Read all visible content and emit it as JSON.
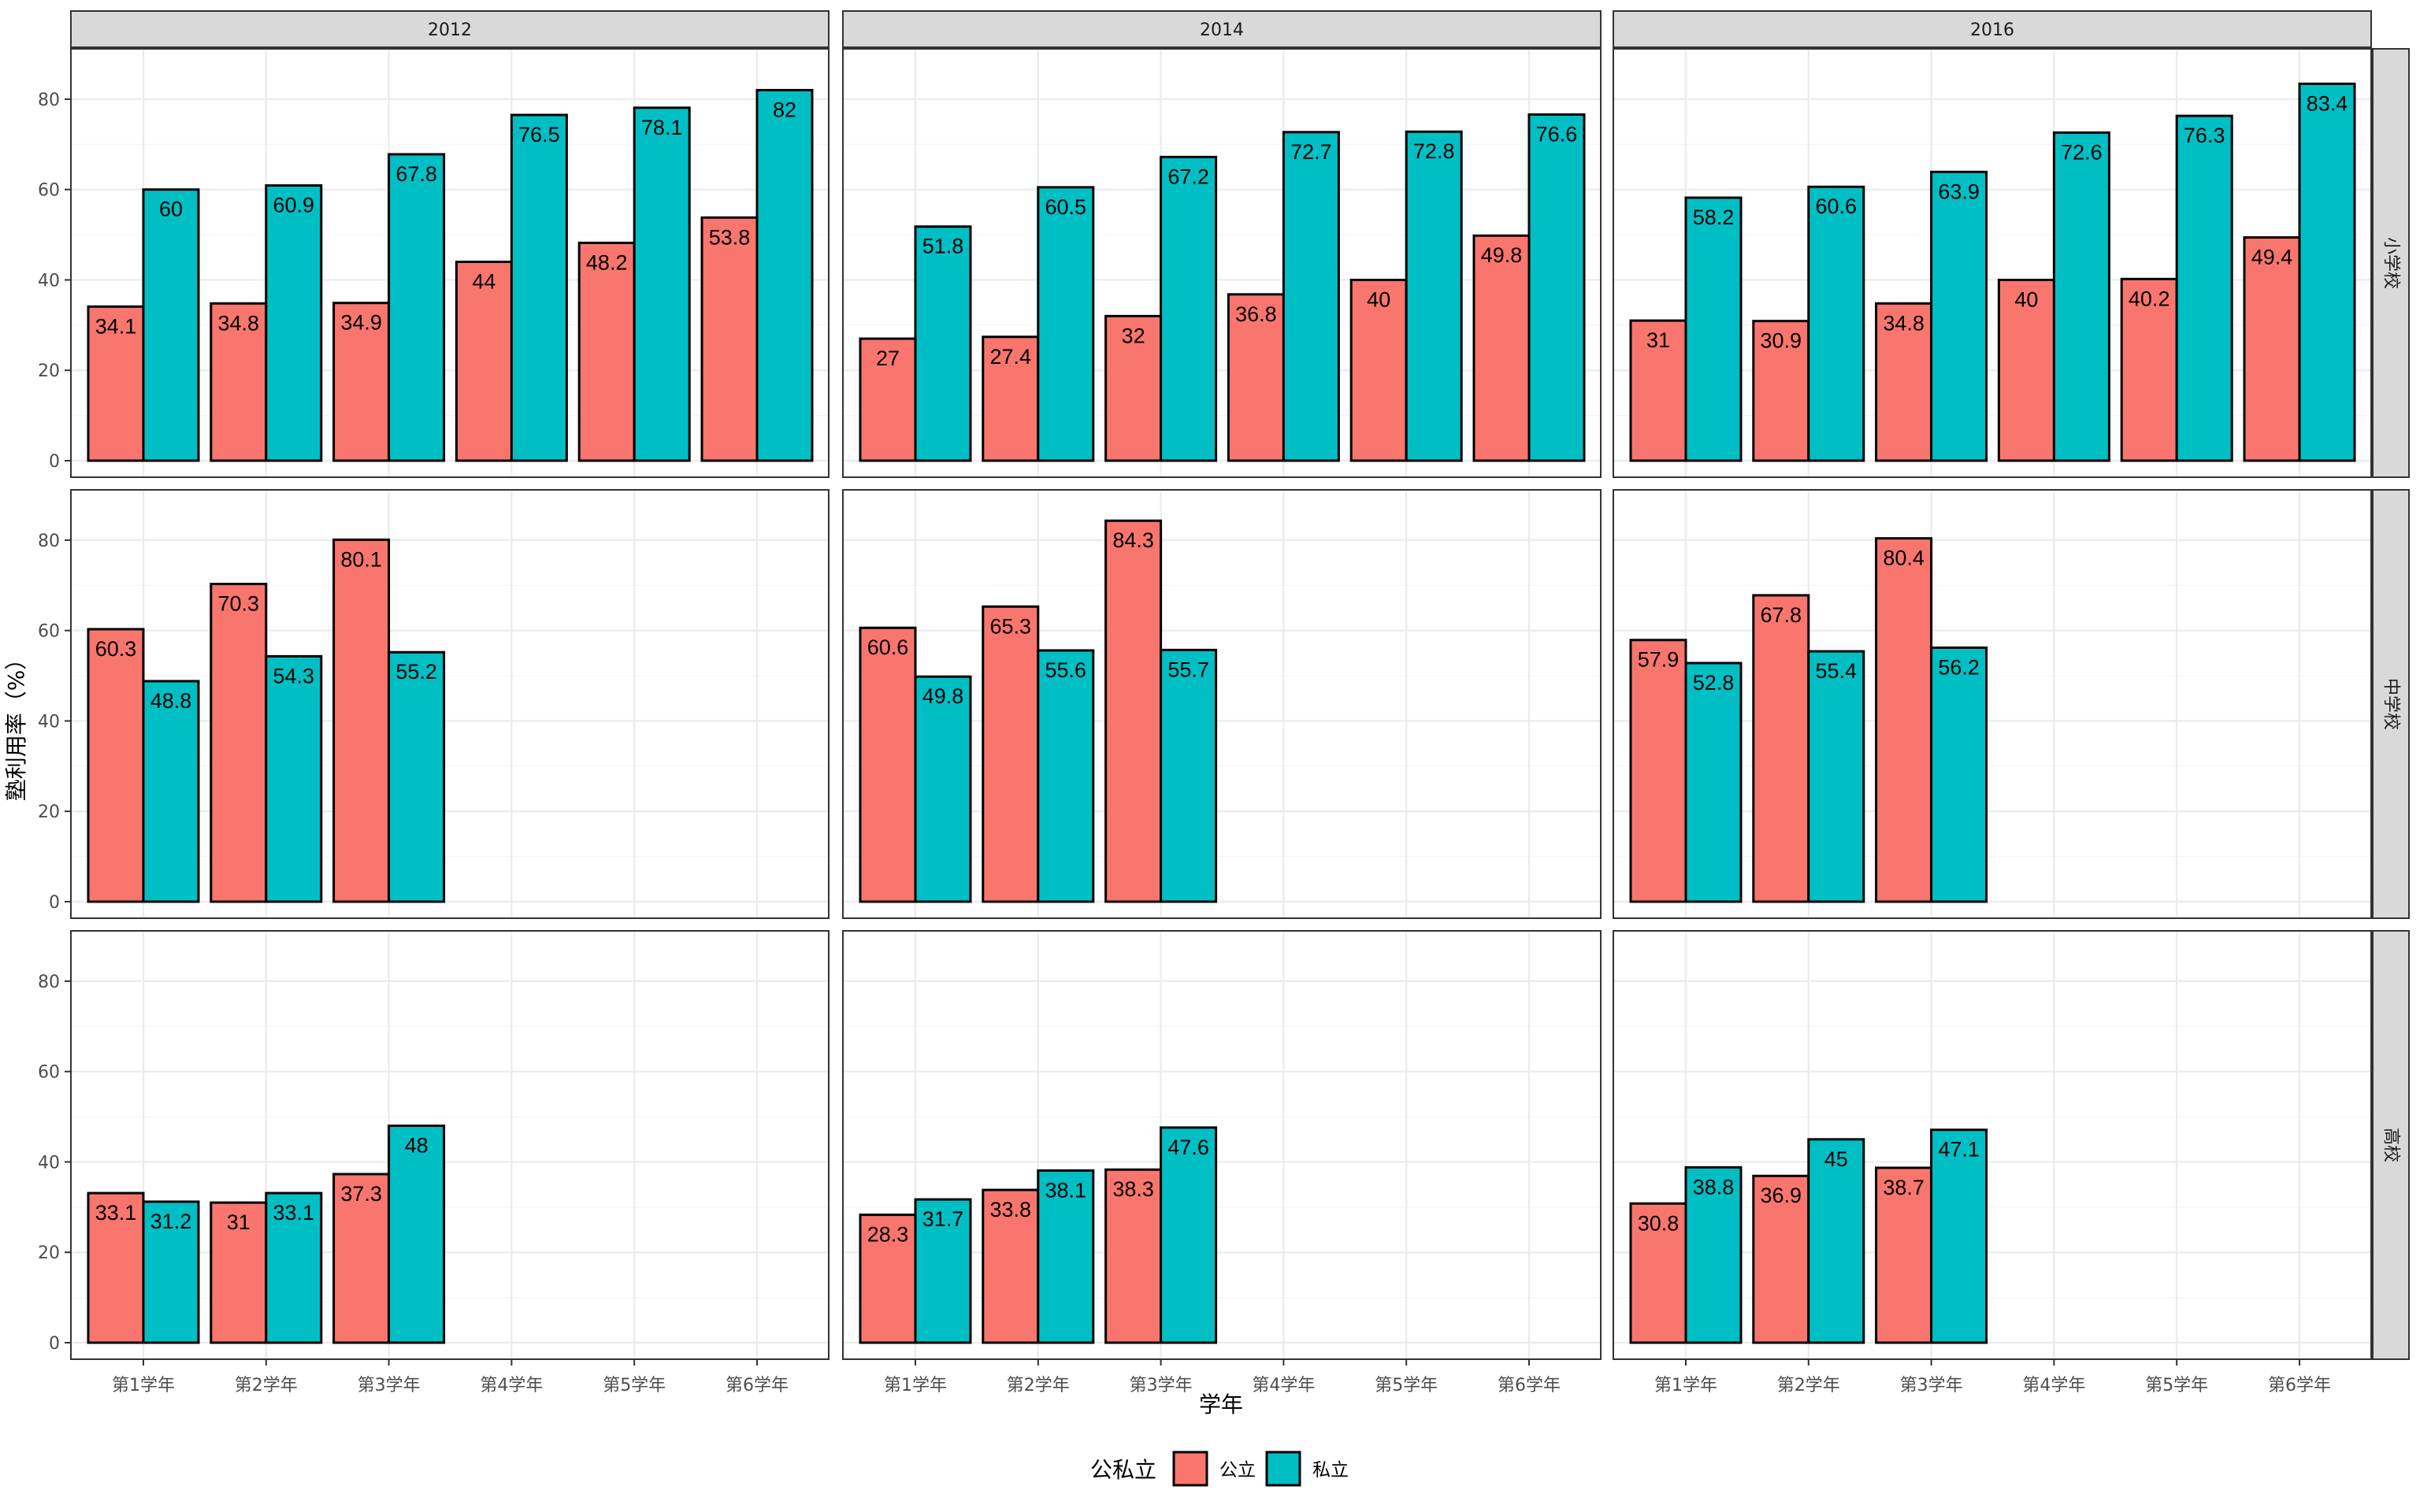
{
  "chart_data": {
    "type": "bar",
    "xlabel": "学年",
    "ylabel": "塾利用率（%）",
    "ylim": [
      0,
      88
    ],
    "yticks": [
      0,
      20,
      40,
      60,
      80
    ],
    "grid": true,
    "col_facets": [
      "2012",
      "2014",
      "2016"
    ],
    "row_facets": [
      "小学校",
      "中学校",
      "高校"
    ],
    "categories": [
      "第1学年",
      "第2学年",
      "第3学年",
      "第4学年",
      "第5学年",
      "第6学年"
    ],
    "legend": {
      "title": "公私立",
      "position": "bottom",
      "items": [
        {
          "name": "公立",
          "color": "#F8766D"
        },
        {
          "name": "私立",
          "color": "#00BFC4"
        }
      ]
    },
    "panels": [
      {
        "row": "小学校",
        "col": "2012",
        "公立": [
          34.1,
          34.8,
          34.9,
          44,
          48.2,
          53.8
        ],
        "私立": [
          60,
          60.9,
          67.8,
          76.5,
          78.1,
          82
        ]
      },
      {
        "row": "小学校",
        "col": "2014",
        "公立": [
          27,
          27.4,
          32,
          36.8,
          40,
          49.8
        ],
        "私立": [
          51.8,
          60.5,
          67.2,
          72.7,
          72.8,
          76.6
        ]
      },
      {
        "row": "小学校",
        "col": "2016",
        "公立": [
          31,
          30.9,
          34.8,
          40,
          40.2,
          49.4
        ],
        "私立": [
          58.2,
          60.6,
          63.9,
          72.6,
          76.3,
          83.4
        ]
      },
      {
        "row": "中学校",
        "col": "2012",
        "公立": [
          60.3,
          70.3,
          80.1
        ],
        "私立": [
          48.8,
          54.3,
          55.2
        ]
      },
      {
        "row": "中学校",
        "col": "2014",
        "公立": [
          60.6,
          65.3,
          84.3
        ],
        "私立": [
          49.8,
          55.6,
          55.7
        ]
      },
      {
        "row": "中学校",
        "col": "2016",
        "公立": [
          57.9,
          67.8,
          80.4
        ],
        "私立": [
          52.8,
          55.4,
          56.2
        ]
      },
      {
        "row": "高校",
        "col": "2012",
        "公立": [
          33.1,
          31,
          37.3
        ],
        "私立": [
          31.2,
          33.1,
          48
        ]
      },
      {
        "row": "高校",
        "col": "2014",
        "公立": [
          28.3,
          33.8,
          38.3
        ],
        "私立": [
          31.7,
          38.1,
          47.6
        ]
      },
      {
        "row": "高校",
        "col": "2016",
        "公立": [
          30.8,
          36.9,
          38.7
        ],
        "私立": [
          38.8,
          45,
          47.1
        ]
      }
    ]
  }
}
